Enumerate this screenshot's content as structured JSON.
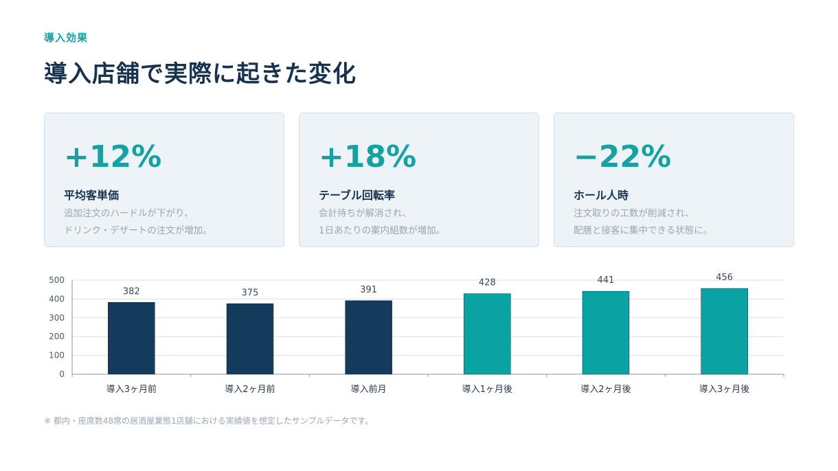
{
  "header": {
    "eyebrow": "導入効果",
    "title": "導入店舗で実際に起きた変化"
  },
  "cards": [
    {
      "value": "+12%",
      "label": "平均客単価",
      "desc1": "追加注文のハードルが下がり、",
      "desc2": "ドリンク・デザートの注文が増加。"
    },
    {
      "value": "+18%",
      "label": "テーブル回転率",
      "desc1": "会計待ちが解消され、",
      "desc2": "1日あたりの案内組数が増加。"
    },
    {
      "value": "−22%",
      "label": "ホール人時",
      "desc1": "注文取りの工数が削減され、",
      "desc2": "配膳と接客に集中できる状態に。"
    }
  ],
  "chart_data": {
    "type": "bar",
    "categories": [
      "導入3ヶ月前",
      "導入2ヶ月前",
      "導入前月",
      "導入1ヶ月後",
      "導入2ヶ月後",
      "導入3ヶ月後"
    ],
    "values": [
      382,
      375,
      391,
      428,
      441,
      456
    ],
    "colors": [
      "#143a5c",
      "#143a5c",
      "#143a5c",
      "#0aa3a3",
      "#0aa3a3",
      "#0aa3a3"
    ],
    "ylim": [
      0,
      500
    ],
    "yticks": [
      0,
      100,
      200,
      300,
      400,
      500
    ],
    "grid": true,
    "data_labels": true
  },
  "footnote": "※ 都内・座席数48席の居酒屋業態1店舗における実績値を想定したサンプルデータです。"
}
